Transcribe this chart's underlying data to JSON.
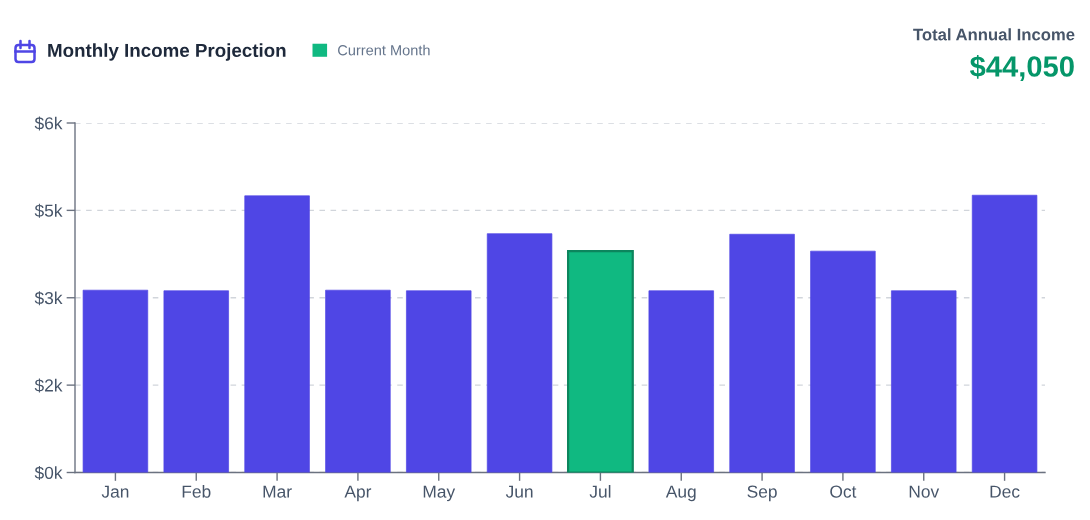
{
  "chart_data": {
    "type": "bar",
    "title": "Monthly Income Projection",
    "categories": [
      "Jan",
      "Feb",
      "Mar",
      "Apr",
      "May",
      "Jun",
      "Jul",
      "Aug",
      "Sep",
      "Oct",
      "Nov",
      "Dec"
    ],
    "stacked": true,
    "series": [
      {
        "color": "#4f46e5",
        "values": [
          3130,
          3120,
          4750,
          3130,
          3120,
          4100,
          null,
          3120,
          4090,
          3800,
          3120,
          4760
        ]
      },
      {
        "name": "Current Month",
        "color": "#10b981",
        "values": [
          null,
          null,
          null,
          null,
          null,
          null,
          3800,
          null,
          null,
          null,
          null,
          null
        ]
      }
    ],
    "ylim": [
      0,
      6000
    ],
    "yticks": [
      {
        "value": 0,
        "label": "$0k"
      },
      {
        "value": 1500,
        "label": "$2k"
      },
      {
        "value": 3000,
        "label": "$3k"
      },
      {
        "value": 4500,
        "label": "$5k"
      },
      {
        "value": 6000,
        "label": "$6k"
      }
    ],
    "grid": "y",
    "legend": "top",
    "annotations": [
      "Total Annual Income",
      "$44,050"
    ]
  }
}
